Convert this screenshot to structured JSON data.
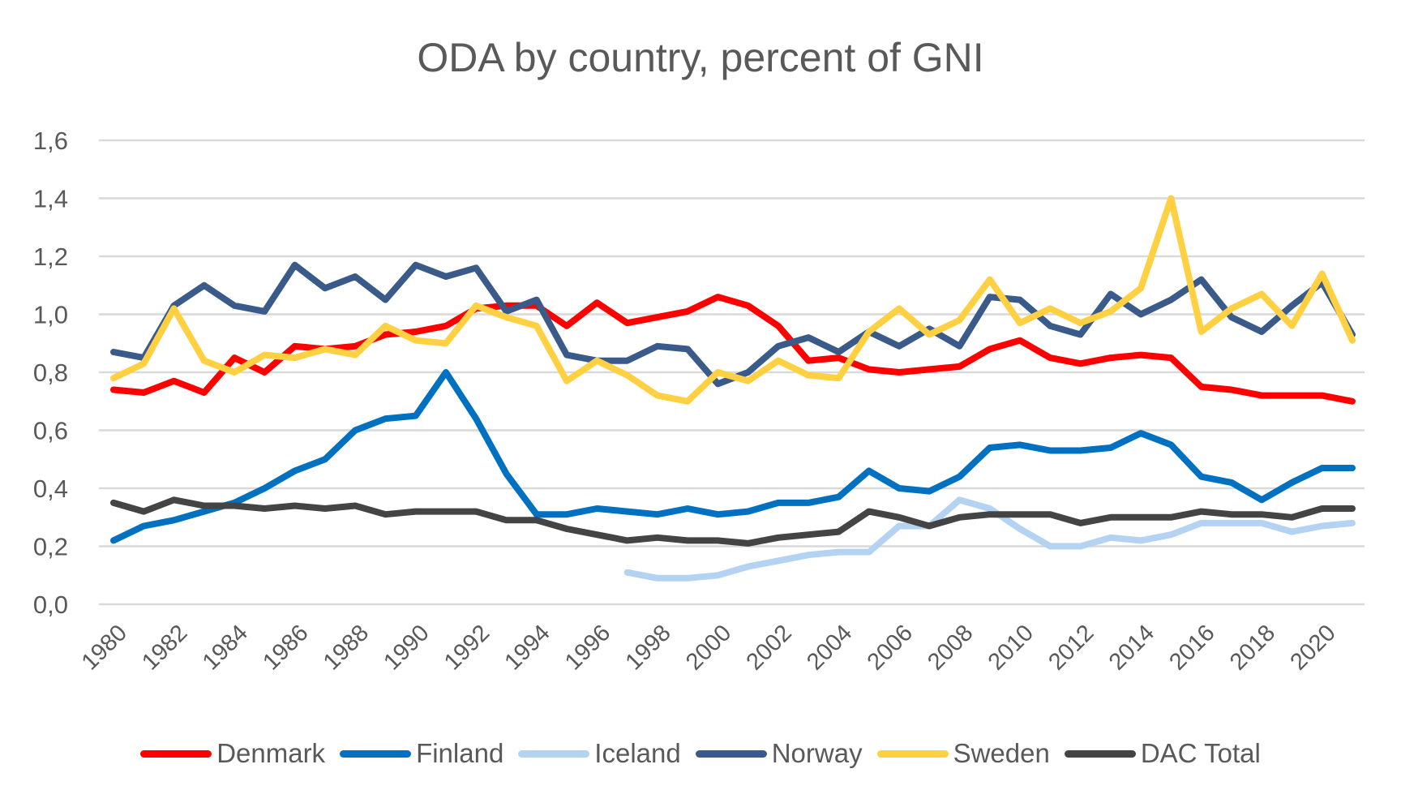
{
  "chart_data": {
    "type": "line",
    "title": "ODA by country, percent of GNI",
    "xlabel": "",
    "ylabel": "",
    "ylim": [
      0,
      1.6
    ],
    "yticks": [
      "0,0",
      "0,2",
      "0,4",
      "0,6",
      "0,8",
      "1,0",
      "1,2",
      "1,4",
      "1,6"
    ],
    "ytick_values": [
      0,
      0.2,
      0.4,
      0.6,
      0.8,
      1.0,
      1.2,
      1.4,
      1.6
    ],
    "xticks": [
      "1980",
      "1982",
      "1984",
      "1986",
      "1988",
      "1990",
      "1992",
      "1994",
      "1996",
      "1998",
      "2000",
      "2002",
      "2004",
      "2006",
      "2008",
      "2010",
      "2012",
      "2014",
      "2016",
      "2018",
      "2020"
    ],
    "grid": true,
    "legend_position": "bottom",
    "x": [
      1980,
      1981,
      1982,
      1983,
      1984,
      1985,
      1986,
      1987,
      1988,
      1989,
      1990,
      1991,
      1992,
      1993,
      1994,
      1995,
      1996,
      1997,
      1998,
      1999,
      2000,
      2001,
      2002,
      2003,
      2004,
      2005,
      2006,
      2007,
      2008,
      2009,
      2010,
      2011,
      2012,
      2013,
      2014,
      2015,
      2016,
      2017,
      2018,
      2019,
      2020,
      2021
    ],
    "series": [
      {
        "name": "Denmark",
        "color": "#FF0000",
        "values": [
          0.74,
          0.73,
          0.77,
          0.73,
          0.85,
          0.8,
          0.89,
          0.88,
          0.89,
          0.93,
          0.94,
          0.96,
          1.02,
          1.03,
          1.03,
          0.96,
          1.04,
          0.97,
          0.99,
          1.01,
          1.06,
          1.03,
          0.96,
          0.84,
          0.85,
          0.81,
          0.8,
          0.81,
          0.82,
          0.88,
          0.91,
          0.85,
          0.83,
          0.85,
          0.86,
          0.85,
          0.75,
          0.74,
          0.72,
          0.72,
          0.72,
          0.7
        ]
      },
      {
        "name": "Finland",
        "color": "#0070C0",
        "values": [
          0.22,
          0.27,
          0.29,
          0.32,
          0.35,
          0.4,
          0.46,
          0.5,
          0.6,
          0.64,
          0.65,
          0.8,
          0.64,
          0.45,
          0.31,
          0.31,
          0.33,
          0.32,
          0.31,
          0.33,
          0.31,
          0.32,
          0.35,
          0.35,
          0.37,
          0.46,
          0.4,
          0.39,
          0.44,
          0.54,
          0.55,
          0.53,
          0.53,
          0.54,
          0.59,
          0.55,
          0.44,
          0.42,
          0.36,
          0.42,
          0.47,
          0.47
        ]
      },
      {
        "name": "Iceland",
        "color": "#B4D3F2",
        "values": [
          null,
          null,
          null,
          null,
          null,
          null,
          null,
          null,
          null,
          null,
          null,
          null,
          null,
          null,
          null,
          null,
          null,
          0.11,
          0.09,
          0.09,
          0.1,
          0.13,
          0.15,
          0.17,
          0.18,
          0.18,
          0.27,
          0.27,
          0.36,
          0.33,
          0.26,
          0.2,
          0.2,
          0.23,
          0.22,
          0.24,
          0.28,
          0.28,
          0.28,
          0.25,
          0.27,
          0.28
        ]
      },
      {
        "name": "Norway",
        "color": "#3A5B8A",
        "values": [
          0.87,
          0.85,
          1.03,
          1.1,
          1.03,
          1.01,
          1.17,
          1.09,
          1.13,
          1.05,
          1.17,
          1.13,
          1.16,
          1.01,
          1.05,
          0.86,
          0.84,
          0.84,
          0.89,
          0.88,
          0.76,
          0.8,
          0.89,
          0.92,
          0.87,
          0.94,
          0.89,
          0.95,
          0.89,
          1.06,
          1.05,
          0.96,
          0.93,
          1.07,
          1.0,
          1.05,
          1.12,
          0.99,
          0.94,
          1.03,
          1.11,
          0.93
        ]
      },
      {
        "name": "Sweden",
        "color": "#FFD042",
        "values": [
          0.78,
          0.83,
          1.02,
          0.84,
          0.8,
          0.86,
          0.85,
          0.88,
          0.86,
          0.96,
          0.91,
          0.9,
          1.03,
          0.99,
          0.96,
          0.77,
          0.84,
          0.79,
          0.72,
          0.7,
          0.8,
          0.77,
          0.84,
          0.79,
          0.78,
          0.94,
          1.02,
          0.93,
          0.98,
          1.12,
          0.97,
          1.02,
          0.97,
          1.01,
          1.09,
          1.4,
          0.94,
          1.02,
          1.07,
          0.96,
          1.14,
          0.91
        ]
      },
      {
        "name": "DAC Total",
        "color": "#444444",
        "values": [
          0.35,
          0.32,
          0.36,
          0.34,
          0.34,
          0.33,
          0.34,
          0.33,
          0.34,
          0.31,
          0.32,
          0.32,
          0.32,
          0.29,
          0.29,
          0.26,
          0.24,
          0.22,
          0.23,
          0.22,
          0.22,
          0.21,
          0.23,
          0.24,
          0.25,
          0.32,
          0.3,
          0.27,
          0.3,
          0.31,
          0.31,
          0.31,
          0.28,
          0.3,
          0.3,
          0.3,
          0.32,
          0.31,
          0.31,
          0.3,
          0.33,
          0.33
        ]
      }
    ]
  }
}
